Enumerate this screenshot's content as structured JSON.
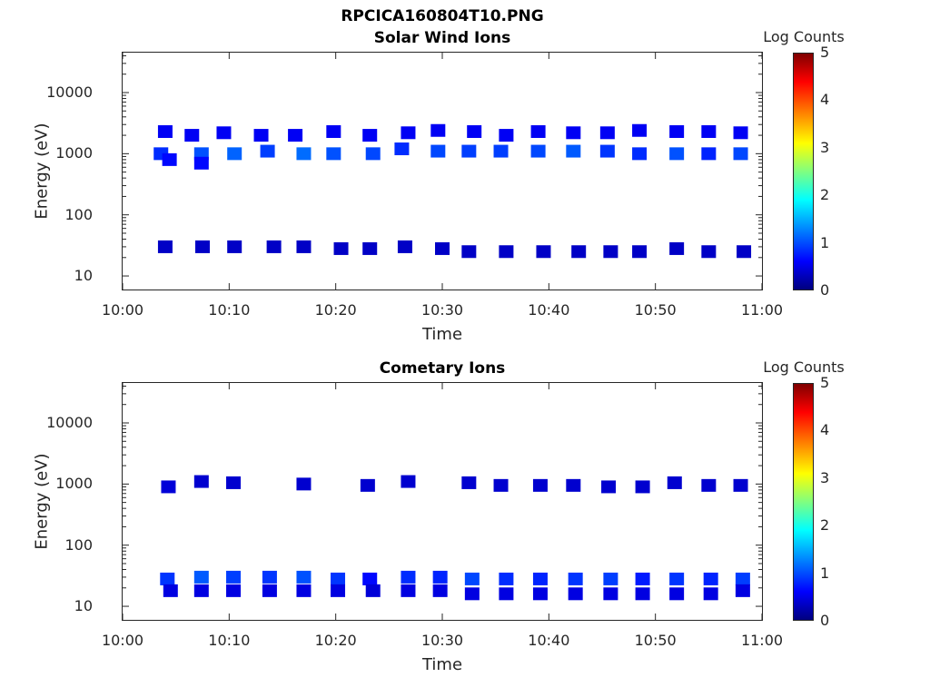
{
  "figure_title": "RPCICA160804T10.PNG",
  "colors": {
    "axis": "#262626",
    "low": "#00007f",
    "mid": "#00ffff",
    "high": "#7f0000"
  },
  "chart_data": [
    {
      "type": "heatmap",
      "title": "Solar Wind Ions",
      "xlabel": "Time",
      "ylabel": "Energy (eV)",
      "x_ticks": [
        "10:00",
        "10:10",
        "10:20",
        "10:30",
        "10:40",
        "10:50",
        "11:00"
      ],
      "y_ticks": [
        "10",
        "100",
        "1000",
        "10000"
      ],
      "y_scale": "log",
      "ylim": [
        6,
        45000
      ],
      "colorbar": {
        "label": "Log Counts",
        "ticks": [
          "0",
          "1",
          "2",
          "3",
          "4",
          "5"
        ],
        "range": [
          0,
          5
        ]
      },
      "blocks": [
        {
          "t": 3.6,
          "e": 1000,
          "c": 1.2
        },
        {
          "t": 4.4,
          "e": 800,
          "c": 0.8
        },
        {
          "t": 4.0,
          "e": 2300,
          "c": 0.6
        },
        {
          "t": 4.0,
          "e": 30,
          "c": 0.1
        },
        {
          "t": 6.5,
          "e": 2000,
          "c": 0.6
        },
        {
          "t": 7.4,
          "e": 1000,
          "c": 1.6
        },
        {
          "t": 7.4,
          "e": 700,
          "c": 0.8
        },
        {
          "t": 7.5,
          "e": 30,
          "c": 0.1
        },
        {
          "t": 9.5,
          "e": 2200,
          "c": 0.6
        },
        {
          "t": 10.5,
          "e": 1000,
          "c": 1.8
        },
        {
          "t": 10.5,
          "e": 30,
          "c": 0.1
        },
        {
          "t": 13.0,
          "e": 2000,
          "c": 0.6
        },
        {
          "t": 13.6,
          "e": 1100,
          "c": 1.4
        },
        {
          "t": 14.2,
          "e": 30,
          "c": 0.1
        },
        {
          "t": 16.2,
          "e": 2000,
          "c": 0.6
        },
        {
          "t": 17.0,
          "e": 1000,
          "c": 1.9
        },
        {
          "t": 17.0,
          "e": 30,
          "c": 0.1
        },
        {
          "t": 19.8,
          "e": 2300,
          "c": 0.6
        },
        {
          "t": 19.8,
          "e": 1000,
          "c": 1.6
        },
        {
          "t": 20.5,
          "e": 28,
          "c": 0.1
        },
        {
          "t": 23.5,
          "e": 1000,
          "c": 1.5
        },
        {
          "t": 23.2,
          "e": 2000,
          "c": 0.6
        },
        {
          "t": 23.2,
          "e": 28,
          "c": 0.1
        },
        {
          "t": 26.2,
          "e": 1200,
          "c": 1.2
        },
        {
          "t": 26.8,
          "e": 2200,
          "c": 0.6
        },
        {
          "t": 26.5,
          "e": 30,
          "c": 0.1
        },
        {
          "t": 29.6,
          "e": 1100,
          "c": 1.5
        },
        {
          "t": 29.6,
          "e": 2400,
          "c": 0.6
        },
        {
          "t": 30.0,
          "e": 28,
          "c": 0.1
        },
        {
          "t": 32.5,
          "e": 1100,
          "c": 1.4
        },
        {
          "t": 33.0,
          "e": 2300,
          "c": 0.6
        },
        {
          "t": 32.5,
          "e": 25,
          "c": 0.1
        },
        {
          "t": 35.5,
          "e": 1100,
          "c": 1.4
        },
        {
          "t": 36.0,
          "e": 2000,
          "c": 0.6
        },
        {
          "t": 36.0,
          "e": 25,
          "c": 0.1
        },
        {
          "t": 39.0,
          "e": 1100,
          "c": 1.5
        },
        {
          "t": 39.0,
          "e": 2300,
          "c": 0.6
        },
        {
          "t": 39.5,
          "e": 25,
          "c": 0.1
        },
        {
          "t": 42.3,
          "e": 1100,
          "c": 1.7
        },
        {
          "t": 42.3,
          "e": 2200,
          "c": 0.6
        },
        {
          "t": 42.8,
          "e": 25,
          "c": 0.1
        },
        {
          "t": 45.5,
          "e": 1100,
          "c": 1.3
        },
        {
          "t": 45.5,
          "e": 2200,
          "c": 0.6
        },
        {
          "t": 45.8,
          "e": 25,
          "c": 0.1
        },
        {
          "t": 48.5,
          "e": 1000,
          "c": 1.2
        },
        {
          "t": 48.5,
          "e": 2400,
          "c": 0.6
        },
        {
          "t": 48.5,
          "e": 25,
          "c": 0.1
        },
        {
          "t": 52.0,
          "e": 1000,
          "c": 1.6
        },
        {
          "t": 52.0,
          "e": 2300,
          "c": 0.6
        },
        {
          "t": 52.0,
          "e": 28,
          "c": 0.1
        },
        {
          "t": 55.0,
          "e": 1000,
          "c": 1.1
        },
        {
          "t": 55.0,
          "e": 2300,
          "c": 0.6
        },
        {
          "t": 55.0,
          "e": 25,
          "c": 0.1
        },
        {
          "t": 58.0,
          "e": 1000,
          "c": 1.5
        },
        {
          "t": 58.0,
          "e": 2200,
          "c": 0.6
        },
        {
          "t": 58.3,
          "e": 25,
          "c": 0.1
        }
      ]
    },
    {
      "type": "heatmap",
      "title": "Cometary Ions",
      "xlabel": "Time",
      "ylabel": "Energy (eV)",
      "x_ticks": [
        "10:00",
        "10:10",
        "10:20",
        "10:30",
        "10:40",
        "10:50",
        "11:00"
      ],
      "y_ticks": [
        "10",
        "100",
        "1000",
        "10000"
      ],
      "y_scale": "log",
      "ylim": [
        6,
        45000
      ],
      "colorbar": {
        "label": "Log Counts",
        "ticks": [
          "0",
          "1",
          "2",
          "3",
          "4",
          "5"
        ],
        "range": [
          0,
          5
        ]
      },
      "blocks": [
        {
          "t": 4.2,
          "e": 28,
          "c": 1.3
        },
        {
          "t": 4.5,
          "e": 18,
          "c": 0.4
        },
        {
          "t": 4.3,
          "e": 900,
          "c": 0.3
        },
        {
          "t": 7.4,
          "e": 30,
          "c": 1.7
        },
        {
          "t": 7.4,
          "e": 18,
          "c": 0.4
        },
        {
          "t": 7.4,
          "e": 1100,
          "c": 0.2
        },
        {
          "t": 10.4,
          "e": 30,
          "c": 1.4
        },
        {
          "t": 10.4,
          "e": 18,
          "c": 0.4
        },
        {
          "t": 10.4,
          "e": 1050,
          "c": 0.2
        },
        {
          "t": 13.8,
          "e": 30,
          "c": 1.3
        },
        {
          "t": 13.8,
          "e": 18,
          "c": 0.4
        },
        {
          "t": 17.0,
          "e": 30,
          "c": 1.6
        },
        {
          "t": 17.0,
          "e": 18,
          "c": 0.4
        },
        {
          "t": 17.0,
          "e": 1000,
          "c": 0.2
        },
        {
          "t": 20.2,
          "e": 28,
          "c": 1.3
        },
        {
          "t": 20.2,
          "e": 18,
          "c": 0.4
        },
        {
          "t": 23.2,
          "e": 28,
          "c": 0.8
        },
        {
          "t": 23.5,
          "e": 18,
          "c": 0.3
        },
        {
          "t": 23.0,
          "e": 950,
          "c": 0.2
        },
        {
          "t": 26.8,
          "e": 30,
          "c": 1.2
        },
        {
          "t": 26.8,
          "e": 18,
          "c": 0.4
        },
        {
          "t": 26.8,
          "e": 1100,
          "c": 0.2
        },
        {
          "t": 29.8,
          "e": 30,
          "c": 1.1
        },
        {
          "t": 29.8,
          "e": 18,
          "c": 0.4
        },
        {
          "t": 32.8,
          "e": 28,
          "c": 1.5
        },
        {
          "t": 32.8,
          "e": 16,
          "c": 0.4
        },
        {
          "t": 32.5,
          "e": 1050,
          "c": 0.2
        },
        {
          "t": 36.0,
          "e": 28,
          "c": 1.2
        },
        {
          "t": 36.0,
          "e": 16,
          "c": 0.4
        },
        {
          "t": 35.5,
          "e": 950,
          "c": 0.2
        },
        {
          "t": 39.2,
          "e": 28,
          "c": 1.1
        },
        {
          "t": 39.2,
          "e": 16,
          "c": 0.4
        },
        {
          "t": 39.2,
          "e": 950,
          "c": 0.2
        },
        {
          "t": 42.5,
          "e": 28,
          "c": 1.3
        },
        {
          "t": 42.5,
          "e": 16,
          "c": 0.4
        },
        {
          "t": 42.3,
          "e": 950,
          "c": 0.2
        },
        {
          "t": 45.8,
          "e": 28,
          "c": 1.4
        },
        {
          "t": 45.8,
          "e": 16,
          "c": 0.4
        },
        {
          "t": 45.6,
          "e": 900,
          "c": 0.2
        },
        {
          "t": 48.8,
          "e": 28,
          "c": 1.0
        },
        {
          "t": 48.8,
          "e": 16,
          "c": 0.4
        },
        {
          "t": 48.8,
          "e": 900,
          "c": 0.2
        },
        {
          "t": 52.0,
          "e": 28,
          "c": 1.3
        },
        {
          "t": 52.0,
          "e": 16,
          "c": 0.4
        },
        {
          "t": 51.8,
          "e": 1050,
          "c": 0.2
        },
        {
          "t": 55.2,
          "e": 28,
          "c": 1.1
        },
        {
          "t": 55.2,
          "e": 16,
          "c": 0.4
        },
        {
          "t": 55.0,
          "e": 950,
          "c": 0.2
        },
        {
          "t": 58.2,
          "e": 28,
          "c": 1.4
        },
        {
          "t": 58.2,
          "e": 18,
          "c": 0.4
        },
        {
          "t": 58.0,
          "e": 950,
          "c": 0.2
        }
      ]
    }
  ]
}
